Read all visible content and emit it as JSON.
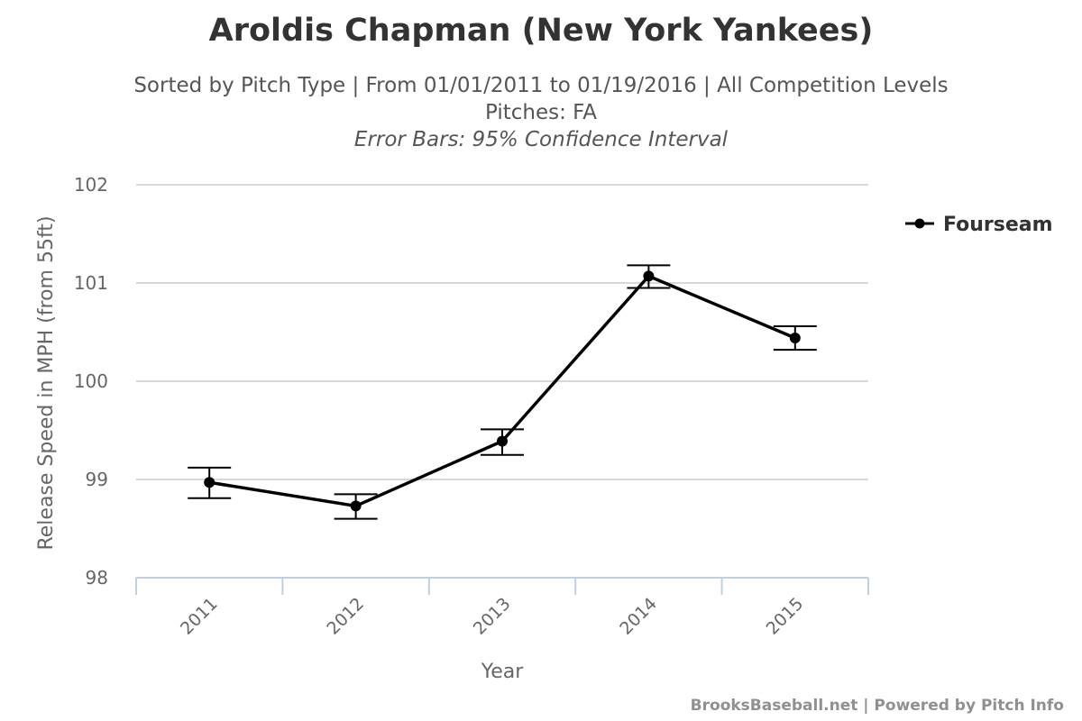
{
  "chart_data": {
    "type": "line",
    "title": "Aroldis Chapman (New York Yankees)",
    "subtitle_lines": [
      "Sorted by Pitch Type | From 01/01/2011 to 01/19/2016 | All Competition Levels",
      "Pitches: FA",
      "Error Bars: 95% Confidence Interval"
    ],
    "xlabel": "Year",
    "ylabel": "Release Speed in MPH (from 55ft)",
    "categories": [
      "2011",
      "2012",
      "2013",
      "2014",
      "2015"
    ],
    "yticks": [
      "98",
      "99",
      "100",
      "101",
      "102"
    ],
    "ylim": [
      98,
      102
    ],
    "grid": true,
    "legend_position": "top-right",
    "series": [
      {
        "name": "Fourseam",
        "color": "#000000",
        "values": [
          98.97,
          98.73,
          99.39,
          101.07,
          100.44
        ],
        "error_low": [
          98.81,
          98.6,
          99.25,
          100.95,
          100.32
        ],
        "error_high": [
          99.12,
          98.85,
          99.51,
          101.18,
          100.56
        ]
      }
    ]
  },
  "credits": "BrooksBaseball.net | Powered by Pitch Info"
}
